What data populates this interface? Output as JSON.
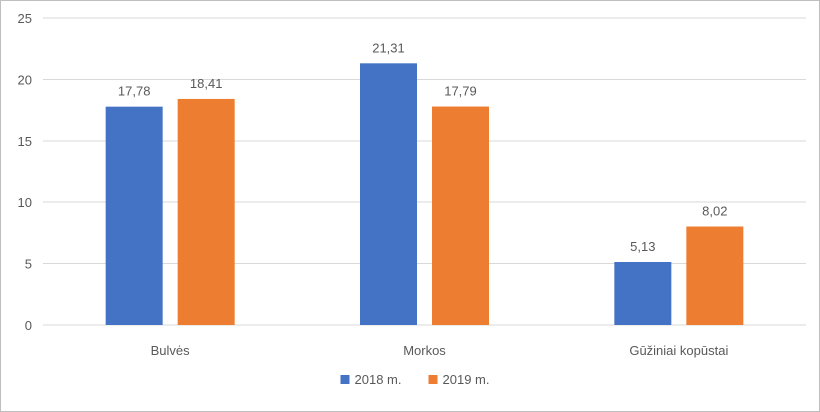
{
  "chart_data": {
    "type": "bar",
    "categories": [
      "Bulvės",
      "Morkos",
      "Gūžiniai kopūstai"
    ],
    "series": [
      {
        "name": "2018 m.",
        "color": "#4472c4",
        "values": [
          17.78,
          21.31,
          5.13
        ],
        "labels": [
          "17,78",
          "21,31",
          "5,13"
        ]
      },
      {
        "name": "2019 m.",
        "color": "#ed7d31",
        "values": [
          18.41,
          17.79,
          8.02
        ],
        "labels": [
          "18,41",
          "17,79",
          "8,02"
        ]
      }
    ],
    "yticks": [
      0,
      5,
      10,
      15,
      20,
      25
    ],
    "ylim": [
      0,
      25
    ],
    "grid": true,
    "legend_position": "bottom"
  }
}
